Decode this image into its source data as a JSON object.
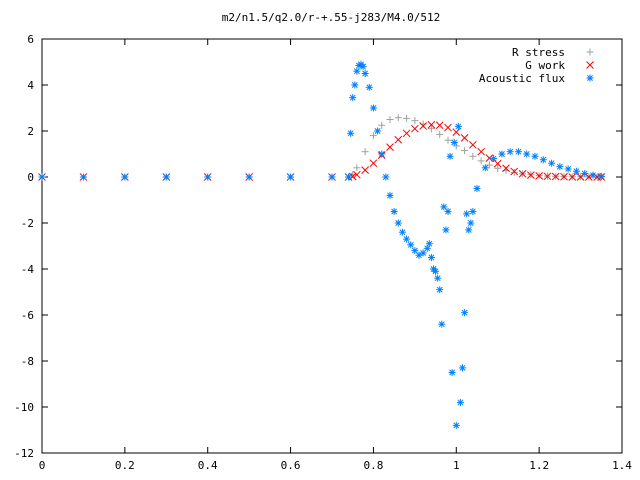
{
  "chart_data": {
    "type": "scatter",
    "title": "m2/n1.5/q2.0/r-+.55-j283/M4.0/512",
    "xlabel": "",
    "ylabel": "",
    "xlim": [
      0,
      1.4
    ],
    "ylim": [
      -12,
      6
    ],
    "x_ticks": [
      0,
      0.2,
      0.4,
      0.6,
      0.8,
      1,
      1.2,
      1.4
    ],
    "x_tick_labels": [
      "0",
      "0.2",
      "0.4",
      "0.6",
      "0.8",
      "1",
      "1.2",
      "1.4"
    ],
    "y_ticks": [
      -12,
      -10,
      -8,
      -6,
      -4,
      -2,
      0,
      2,
      4,
      6
    ],
    "y_tick_labels": [
      "-12",
      "-10",
      "-8",
      "-6",
      "-4",
      "-2",
      "0",
      "2",
      "4",
      "6"
    ],
    "grid": false,
    "legend_position": "top-right",
    "series": [
      {
        "name": "R stress",
        "marker": "plus",
        "color": "#a0a0a0",
        "x": [
          0.0,
          0.1,
          0.2,
          0.3,
          0.4,
          0.5,
          0.6,
          0.7,
          0.74,
          0.75,
          0.76,
          0.78,
          0.8,
          0.82,
          0.84,
          0.86,
          0.88,
          0.9,
          0.92,
          0.94,
          0.96,
          0.98,
          1.0,
          1.02,
          1.04,
          1.06,
          1.08,
          1.1,
          1.12,
          1.14,
          1.16,
          1.18,
          1.2,
          1.22,
          1.24,
          1.26,
          1.28,
          1.3,
          1.32,
          1.34,
          1.35
        ],
        "y": [
          0,
          0,
          0,
          0,
          0,
          0,
          0,
          0,
          0,
          0.1,
          0.4,
          1.1,
          1.8,
          2.25,
          2.5,
          2.58,
          2.55,
          2.45,
          2.3,
          2.1,
          1.85,
          1.6,
          1.35,
          1.15,
          0.9,
          0.7,
          0.52,
          0.38,
          0.28,
          0.2,
          0.14,
          0.1,
          0.06,
          0.04,
          0.03,
          0.02,
          0.01,
          0.01,
          0.0,
          0.0,
          0.0
        ]
      },
      {
        "name": "G work",
        "marker": "cross",
        "color": "#ff0000",
        "x": [
          0.0,
          0.1,
          0.2,
          0.3,
          0.4,
          0.5,
          0.6,
          0.7,
          0.74,
          0.75,
          0.76,
          0.78,
          0.8,
          0.82,
          0.84,
          0.86,
          0.88,
          0.9,
          0.92,
          0.94,
          0.96,
          0.98,
          1.0,
          1.02,
          1.04,
          1.06,
          1.08,
          1.1,
          1.12,
          1.14,
          1.16,
          1.18,
          1.2,
          1.22,
          1.24,
          1.26,
          1.28,
          1.3,
          1.32,
          1.34,
          1.35
        ],
        "y": [
          0,
          0,
          0,
          0,
          0,
          0,
          0,
          0,
          0,
          0.02,
          0.1,
          0.3,
          0.6,
          0.95,
          1.3,
          1.62,
          1.9,
          2.1,
          2.22,
          2.27,
          2.25,
          2.15,
          1.95,
          1.7,
          1.4,
          1.1,
          0.82,
          0.58,
          0.38,
          0.24,
          0.14,
          0.08,
          0.05,
          0.03,
          0.02,
          0.01,
          0.0,
          0.0,
          0.0,
          0.0,
          0.0
        ]
      },
      {
        "name": "Acoustic flux",
        "marker": "star",
        "color": "#0080ff",
        "x": [
          0.0,
          0.1,
          0.2,
          0.3,
          0.4,
          0.5,
          0.6,
          0.7,
          0.74,
          0.745,
          0.75,
          0.755,
          0.76,
          0.765,
          0.77,
          0.775,
          0.78,
          0.79,
          0.8,
          0.81,
          0.82,
          0.83,
          0.84,
          0.85,
          0.86,
          0.87,
          0.88,
          0.89,
          0.9,
          0.91,
          0.92,
          0.93,
          0.935,
          0.94,
          0.945,
          0.95,
          0.955,
          0.96,
          0.965,
          0.97,
          0.975,
          0.98,
          0.985,
          0.99,
          0.995,
          1.0,
          1.005,
          1.01,
          1.015,
          1.02,
          1.025,
          1.03,
          1.035,
          1.04,
          1.05,
          1.07,
          1.09,
          1.11,
          1.13,
          1.15,
          1.17,
          1.19,
          1.21,
          1.23,
          1.25,
          1.27,
          1.29,
          1.31,
          1.33,
          1.35
        ],
        "y": [
          0,
          0,
          0,
          0,
          0,
          0,
          0,
          0,
          0,
          1.9,
          3.45,
          4.0,
          4.6,
          4.85,
          4.9,
          4.8,
          4.5,
          3.9,
          3.0,
          2.0,
          1.0,
          0.0,
          -0.8,
          -1.5,
          -2.0,
          -2.4,
          -2.7,
          -2.95,
          -3.2,
          -3.4,
          -3.3,
          -3.1,
          -2.9,
          -3.5,
          -4.0,
          -4.1,
          -4.4,
          -4.9,
          -6.4,
          -1.3,
          -2.3,
          -1.5,
          0.9,
          -8.5,
          1.5,
          -10.8,
          2.2,
          -9.8,
          -8.3,
          -5.9,
          -1.6,
          -2.3,
          -2.0,
          -1.5,
          -0.5,
          0.4,
          0.8,
          1.0,
          1.1,
          1.1,
          1.0,
          0.9,
          0.75,
          0.6,
          0.45,
          0.35,
          0.25,
          0.15,
          0.08,
          0.03
        ]
      }
    ]
  },
  "colors": {
    "background": "#ffffff",
    "axes": "#000000"
  }
}
